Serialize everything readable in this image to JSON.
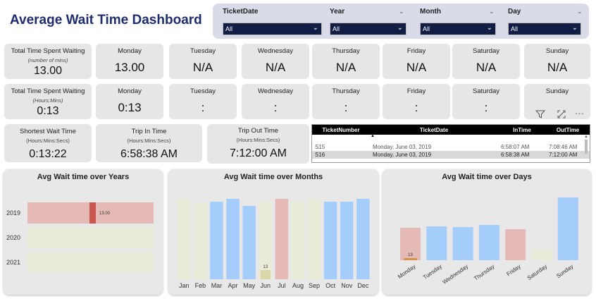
{
  "title": "Average Wait Time Dashboard",
  "filters": [
    {
      "label": "TicketDate",
      "value": "All"
    },
    {
      "label": "Year",
      "value": "All"
    },
    {
      "label": "Month",
      "value": "All"
    },
    {
      "label": "Day",
      "value": "All"
    }
  ],
  "row1": {
    "total": {
      "title": "Total Time Spent Waiting",
      "sub": "(number of mins)",
      "value": "13.00"
    },
    "days": [
      {
        "day": "Monday",
        "value": "13.00"
      },
      {
        "day": "Tuesday",
        "value": "N/A"
      },
      {
        "day": "Wednesday",
        "value": "N/A"
      },
      {
        "day": "Thursday",
        "value": "N/A"
      },
      {
        "day": "Friday",
        "value": "N/A"
      },
      {
        "day": "Saturday",
        "value": "N/A"
      },
      {
        "day": "Sunday",
        "value": "N/A"
      }
    ]
  },
  "row2": {
    "total": {
      "title": "Total Time Spent Waiting",
      "sub": "(Hours:Mins)",
      "value": "0:13"
    },
    "days": [
      {
        "day": "Monday",
        "value": "0:13"
      },
      {
        "day": "Tuesday",
        "value": ":"
      },
      {
        "day": "Wednesday",
        "value": ":"
      },
      {
        "day": "Thursday",
        "value": ":"
      },
      {
        "day": "Friday",
        "value": ":"
      },
      {
        "day": "Saturday",
        "value": ":"
      },
      {
        "day": "Sunday",
        "value": ""
      }
    ]
  },
  "row3": [
    {
      "title": "Shortest Wait Time",
      "sub": "(Hours:Mins:Secs)",
      "value": "0:13:22"
    },
    {
      "title": "Trip In Time",
      "sub": "(Hours:Mins:Secs)",
      "value": "6:58:38 AM"
    },
    {
      "title": "Trip Out Time",
      "sub": "(Hours:Mins:Secs)",
      "value": "7:12:00 AM"
    }
  ],
  "table": {
    "headers": [
      "TicketNumber",
      "TicketDate",
      "InTime",
      "OutTime"
    ],
    "rows": [
      [
        "S15",
        "Monday, June 03, 2019",
        "6:58:07 AM",
        "7:08:46 AM"
      ],
      [
        "S16",
        "Monday, June 03, 2019",
        "6:58:38 AM",
        "7:12:00 AM"
      ]
    ]
  },
  "visual_icons": [
    "filter-icon",
    "focus-mode-icon",
    "more-options-icon"
  ],
  "colors": {
    "navy": "#1f2d6e",
    "red": "#e4b9b6",
    "green": "#e8ecd8",
    "blue": "#a5cdfb",
    "darkred": "#c9574d"
  },
  "chart_data": [
    {
      "type": "bar",
      "orientation": "horizontal",
      "title": "Avg Wait time over Years",
      "categories": [
        "2019",
        "2020",
        "2021"
      ],
      "values": [
        13.0,
        null,
        null
      ],
      "data_labels": [
        "13.00",
        "",
        ""
      ]
    },
    {
      "type": "bar",
      "title": "Avg Wait time over Months",
      "categories": [
        "Jan",
        "Feb",
        "Mar",
        "Apr",
        "May",
        "Jun",
        "Jul",
        "Aug",
        "Sep",
        "Oct",
        "Nov",
        "Dec"
      ],
      "values": [
        null,
        null,
        null,
        null,
        null,
        13,
        null,
        null,
        null,
        null,
        null,
        null
      ],
      "data_labels": [
        "",
        "",
        "",
        "",
        "",
        "13",
        "",
        "",
        "",
        "",
        "",
        ""
      ]
    },
    {
      "type": "bar",
      "title": "Avg Wait time over Days",
      "categories": [
        "Monday",
        "Tuesday",
        "Wednesday",
        "Thursday",
        "Friday",
        "Saturday",
        "Sunday"
      ],
      "values": [
        13,
        null,
        null,
        null,
        null,
        null,
        null
      ],
      "data_labels": [
        "13",
        "",
        "",
        "",
        "",
        "",
        ""
      ]
    }
  ]
}
